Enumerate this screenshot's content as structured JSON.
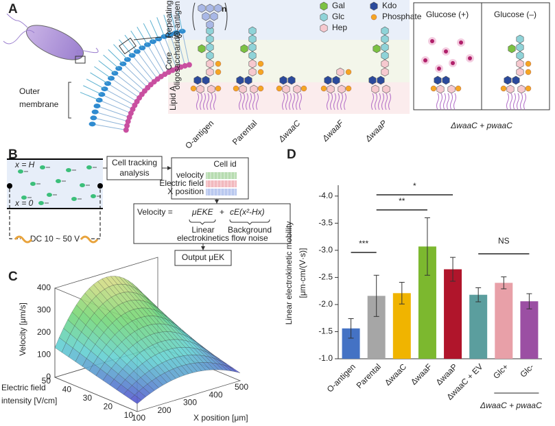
{
  "panel_a": {
    "label": "A",
    "lps": "LPS",
    "outer_membrane": [
      "Outer",
      "membrane"
    ],
    "n": "n",
    "regions": [
      [
        "Repeating",
        "O-antigen"
      ],
      [
        "Core",
        "oligosaccharide"
      ],
      [
        "Lipid A"
      ]
    ],
    "legend": [
      "Gal",
      "Glc",
      "Hep",
      "Kdo",
      "Phosphate"
    ],
    "strains": [
      "O-antigen",
      "Parental",
      "ΔwaaC",
      "ΔwaaF",
      "ΔwaaP"
    ],
    "glucose": [
      "Glucose (+)",
      "Glucose (–)"
    ],
    "complement": "ΔwaaC + pwaaC"
  },
  "panel_b": {
    "label": "B",
    "x_h": "x = H",
    "x_0": "x = 0",
    "dc": "DC 10 ~ 50 V",
    "tracking": [
      "Cell tracking",
      "analysis"
    ],
    "cell_id": "Cell id",
    "rows": [
      "velocity",
      "Electric field",
      "X position"
    ],
    "equation": {
      "lhs": "Velocity =",
      "term1": "μEKE",
      "plus": "+",
      "term2": "cE(x²-Hx)",
      "note1": [
        "Linear",
        "electrokinetics"
      ],
      "note2": [
        "Background",
        "flow noise"
      ]
    },
    "output": "Output μEK"
  },
  "panel_c": {
    "label": "C",
    "z_label": "Velocity [μm/s]",
    "e_label": [
      "Electric field",
      "intensity [V/cm]"
    ],
    "x_label": "X position [μm]",
    "z_ticks": [
      0,
      100,
      200,
      300,
      400
    ],
    "e_ticks": [
      10,
      20,
      30,
      40,
      50
    ],
    "x_ticks": [
      100,
      200,
      300,
      400,
      500
    ]
  },
  "chart_data": {
    "type": "bar",
    "label": "D",
    "ylabel": [
      "Linear electrokinetic mobility",
      "[μm·cm/(V·s)]"
    ],
    "categories": [
      "O-antigen",
      "Parental",
      "ΔwaaC",
      "ΔwaaF",
      "ΔwaaP",
      "ΔwaaC + EV",
      "Glc+",
      "Glc-"
    ],
    "values": [
      -1.56,
      -2.16,
      -2.21,
      -3.07,
      -2.65,
      -2.18,
      -2.4,
      -2.06
    ],
    "errors": [
      0.18,
      0.38,
      0.2,
      0.53,
      0.22,
      0.13,
      0.11,
      0.14
    ],
    "colors": [
      "#4472c4",
      "#a6a6a6",
      "#f0b400",
      "#7cb82f",
      "#b0152b",
      "#5b9e9e",
      "#e8a0a8",
      "#9b4fa3"
    ],
    "ylim": [
      -1.0,
      -4.2
    ],
    "yticks": [
      {
        "value": -1.0,
        "label": "-1.0"
      },
      -1.5,
      {
        "value": -2.0,
        "label": "-2.0"
      },
      -2.5,
      {
        "value": -3.0,
        "label": "-3.0"
      },
      -3.5,
      {
        "value": -4.0,
        "label": "-4.0"
      }
    ],
    "annotations": [
      "***",
      "**",
      "*",
      "NS"
    ],
    "group_label": "ΔwaaC + pwaaC"
  }
}
